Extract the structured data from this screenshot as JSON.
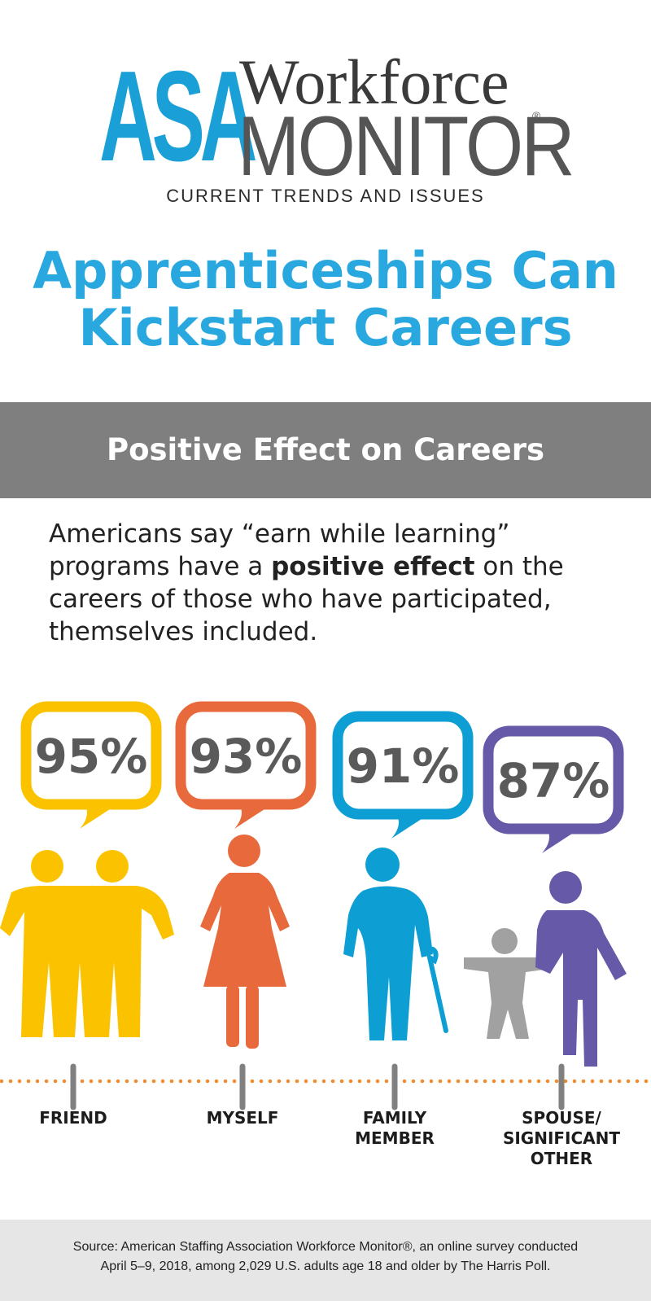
{
  "logo": {
    "asa": "ASA",
    "workforce": "Workforce",
    "monitor": "MONITOR",
    "registered": "®",
    "tagline": "CURRENT TRENDS AND ISSUES"
  },
  "headline": {
    "line1": "Apprenticeships Can",
    "line2": "Kickstart Careers"
  },
  "section": {
    "title": "Positive Effect on Careers"
  },
  "intro": {
    "before": "Americans say “earn while learning” programs have a ",
    "bold": "positive effect",
    "after": " on the careers of those who have participated, themselves included."
  },
  "chart_data": {
    "type": "pictograph",
    "categories": [
      "FRIEND",
      "MYSELF",
      "FAMILY MEMBER",
      "SPOUSE/ SIGNIFICANT OTHER"
    ],
    "category_lines": [
      [
        "FRIEND"
      ],
      [
        "MYSELF"
      ],
      [
        "FAMILY",
        "MEMBER"
      ],
      [
        "SPOUSE/",
        "SIGNIFICANT",
        "OTHER"
      ]
    ],
    "values": [
      95,
      93,
      91,
      87
    ],
    "value_labels": [
      "95%",
      "93%",
      "91%",
      "87%"
    ],
    "colors": [
      "#fbc200",
      "#e86a3c",
      "#0d9ed4",
      "#6559a8"
    ],
    "secondary_color": "#a1a1a1",
    "dotted_line_color": "#f08a30",
    "tick_color": "#808080",
    "icons": [
      "two-friends-icon",
      "woman-icon",
      "elderly-man-with-cane-icon",
      "parent-and-child-icon"
    ]
  },
  "footer": {
    "line1": "Source: American Staffing Association Workforce Monitor®, an online survey conducted",
    "line2": "April 5–9, 2018, among 2,029 U.S. adults age 18 and older by The Harris Poll."
  }
}
